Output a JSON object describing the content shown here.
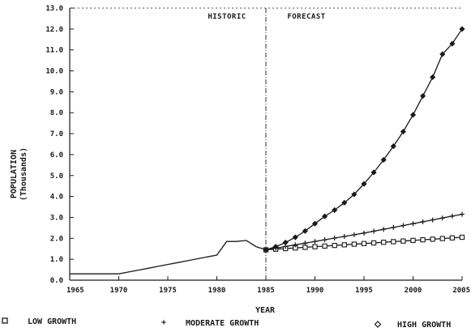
{
  "chart_data": {
    "type": "line",
    "xlabel": "YEAR",
    "ylabel_line1": "POPULATION",
    "ylabel_line2": "(Thousands)",
    "xlim": [
      1965,
      2005
    ],
    "ylim": [
      0,
      13
    ],
    "x_ticks": [
      "1965",
      "1970",
      "1975",
      "1980",
      "1985",
      "1990",
      "1995",
      "2000",
      "2005"
    ],
    "y_ticks": [
      "0.0",
      "1.0",
      "2.0",
      "3.0",
      "4.0",
      "5.0",
      "6.0",
      "7.0",
      "8.0",
      "9.0",
      "10.0",
      "11.0",
      "12.0",
      "13.0"
    ],
    "grid": false,
    "annotations": {
      "historic": "HISTORIC",
      "forecast": "FORECAST",
      "divider_year": 1985
    },
    "historic": {
      "x": [
        1965,
        1966,
        1967,
        1968,
        1969,
        1970,
        1971,
        1972,
        1973,
        1974,
        1975,
        1976,
        1977,
        1978,
        1979,
        1980,
        1981,
        1982,
        1983,
        1984,
        1985
      ],
      "y": [
        0.3,
        0.3,
        0.3,
        0.3,
        0.3,
        0.3,
        0.39,
        0.48,
        0.57,
        0.66,
        0.75,
        0.84,
        0.93,
        1.02,
        1.11,
        1.2,
        1.85,
        1.85,
        1.9,
        1.6,
        1.45
      ]
    },
    "series": [
      {
        "name": "LOW GROWTH",
        "marker": "square",
        "x": [
          1985,
          1986,
          1987,
          1988,
          1989,
          1990,
          1991,
          1992,
          1993,
          1994,
          1995,
          1996,
          1997,
          1998,
          1999,
          2000,
          2001,
          2002,
          2003,
          2004,
          2005
        ],
        "y": [
          1.45,
          1.48,
          1.51,
          1.54,
          1.57,
          1.6,
          1.63,
          1.66,
          1.69,
          1.72,
          1.75,
          1.78,
          1.81,
          1.84,
          1.87,
          1.9,
          1.93,
          1.96,
          1.99,
          2.02,
          2.05
        ]
      },
      {
        "name": "MODERATE GROWTH",
        "marker": "plus",
        "x": [
          1985,
          1986,
          1987,
          1988,
          1989,
          1990,
          1991,
          1992,
          1993,
          1994,
          1995,
          1996,
          1997,
          1998,
          1999,
          2000,
          2001,
          2002,
          2003,
          2004,
          2005
        ],
        "y": [
          1.45,
          1.53,
          1.61,
          1.69,
          1.77,
          1.85,
          1.93,
          2.01,
          2.09,
          2.17,
          2.25,
          2.34,
          2.43,
          2.52,
          2.61,
          2.7,
          2.79,
          2.88,
          2.97,
          3.06,
          3.15
        ]
      },
      {
        "name": "HIGH GROWTH",
        "marker": "diamond",
        "x": [
          1985,
          1986,
          1987,
          1988,
          1989,
          1990,
          1991,
          1992,
          1993,
          1994,
          1995,
          1996,
          1997,
          1998,
          1999,
          2000,
          2001,
          2002,
          2003,
          2004,
          2005
        ],
        "y": [
          1.45,
          1.6,
          1.8,
          2.05,
          2.35,
          2.7,
          3.05,
          3.35,
          3.7,
          4.1,
          4.6,
          5.15,
          5.75,
          6.4,
          7.1,
          7.9,
          8.8,
          9.7,
          10.8,
          11.3,
          12.0
        ]
      }
    ]
  }
}
